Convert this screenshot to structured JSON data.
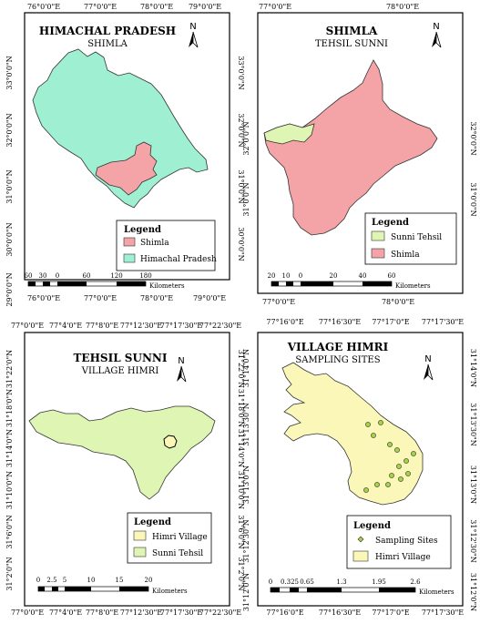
{
  "panels": {
    "a": {
      "title": "HIMACHAL PRADESH",
      "subtitle": "SHIMLA",
      "north": "N",
      "ticks_top": [
        "76°0'0\"E",
        "77°0'0\"E",
        "78°0'0\"E",
        "79°0'0\"E"
      ],
      "ticks_bottom": [
        "76°0'0\"E",
        "77°0'0\"E",
        "78°0'0\"E",
        "79°0'0\"E"
      ],
      "ticks_left": [
        "33°0'0\"N",
        "32°0'0\"N",
        "31°0'0\"N",
        "30°0'0\"N",
        "29°0'0\"N"
      ],
      "ticks_right": [
        "33°0'0\"N",
        "32°0'0\"N",
        "31°0'0\"N",
        "30°0'0\"N"
      ],
      "legend_title": "Legend",
      "legend": [
        "Shimla",
        "Himachal Pradesh"
      ],
      "scale_numbers": [
        "60",
        "30",
        "0",
        "60",
        "120",
        "180"
      ],
      "scale_unit": "Kilometers",
      "colors": {
        "shimla": "#f4a3a7",
        "hp": "#9ff0d2"
      }
    },
    "b": {
      "title": "SHIMLA",
      "subtitle": "TEHSIL SUNNI",
      "north": "N",
      "ticks_top": [
        "77°0'0\"E",
        "78°0'0\"E"
      ],
      "ticks_bottom": [
        "77°0'0\"E",
        "78°0'0\"E"
      ],
      "ticks_left": [
        "32°0'0\"N",
        "31°0'0\"N"
      ],
      "ticks_right": [
        "32°0'0\"N",
        "31°0'0\"N"
      ],
      "legend_title": "Legend",
      "legend": [
        "Sunni Tehsil",
        "Shimla"
      ],
      "scale_numbers": [
        "20",
        "10",
        "0",
        "20",
        "40",
        "60"
      ],
      "scale_unit": "Kilometers",
      "colors": {
        "sunni": "#def5b3",
        "shimla": "#f4a3a7"
      }
    },
    "c": {
      "title": "TEHSIL SUNNI",
      "subtitle": "VILLAGE HIMRI",
      "north": "N",
      "ticks_top": [
        "77°0'0\"E",
        "77°4'0\"E",
        "77°8'0\"E",
        "77°12'30\"E",
        "77°17'30\"E",
        "77°22'30\"E"
      ],
      "ticks_bottom": [
        "77°0'0\"E",
        "77°4'0\"E",
        "77°8'0\"E",
        "77°12'30\"E",
        "77°17'30\"E",
        "77°22'30\"E"
      ],
      "ticks_left": [
        "31°22'0\"N",
        "31°18'0\"N",
        "31°14'0\"N",
        "31°10'0\"N",
        "31°6'0\"N",
        "31°2'0\"N"
      ],
      "ticks_right": [
        "31°22'0\"N",
        "31°18'0\"N",
        "31°14'0\"N",
        "31°10'0\"N",
        "31°6'0\"N",
        "31°2'0\"N"
      ],
      "legend_title": "Legend",
      "legend": [
        "Himri Village",
        "Sunni Tehsil"
      ],
      "scale_numbers": [
        "0",
        "2.5",
        "5",
        "10",
        "15",
        "20"
      ],
      "scale_unit": "Kilometers",
      "colors": {
        "himri": "#fbf7b8",
        "sunni": "#def5b3"
      }
    },
    "d": {
      "title": "VILLAGE HIMRI",
      "subtitle": "SAMPLING SITES",
      "north": "N",
      "ticks_top": [
        "77°16'0\"E",
        "77°16'30\"E",
        "77°17'0\"E",
        "77°17'30\"E"
      ],
      "ticks_bottom": [
        "77°16'0\"E",
        "77°16'30\"E",
        "77°17'0\"E",
        "77°17'30\"E"
      ],
      "ticks_left": [
        "31°14'0\"N",
        "31°13'30\"N",
        "31°13'0\"N",
        "31°12'30\"N",
        "31°12'0\"N"
      ],
      "ticks_right": [
        "31°14'0\"N",
        "31°13'30\"N",
        "31°13'0\"N",
        "31°12'30\"N",
        "31°12'0\"N"
      ],
      "legend_title": "Legend",
      "legend": [
        "Sampling Sites",
        "Himri Village"
      ],
      "scale_numbers": [
        "0",
        "0.325",
        "0.65",
        "1.3",
        "1.95",
        "2.6"
      ],
      "scale_unit": "Kilometers",
      "colors": {
        "himri": "#fbf7b8",
        "site": "#a6d24b"
      }
    }
  }
}
